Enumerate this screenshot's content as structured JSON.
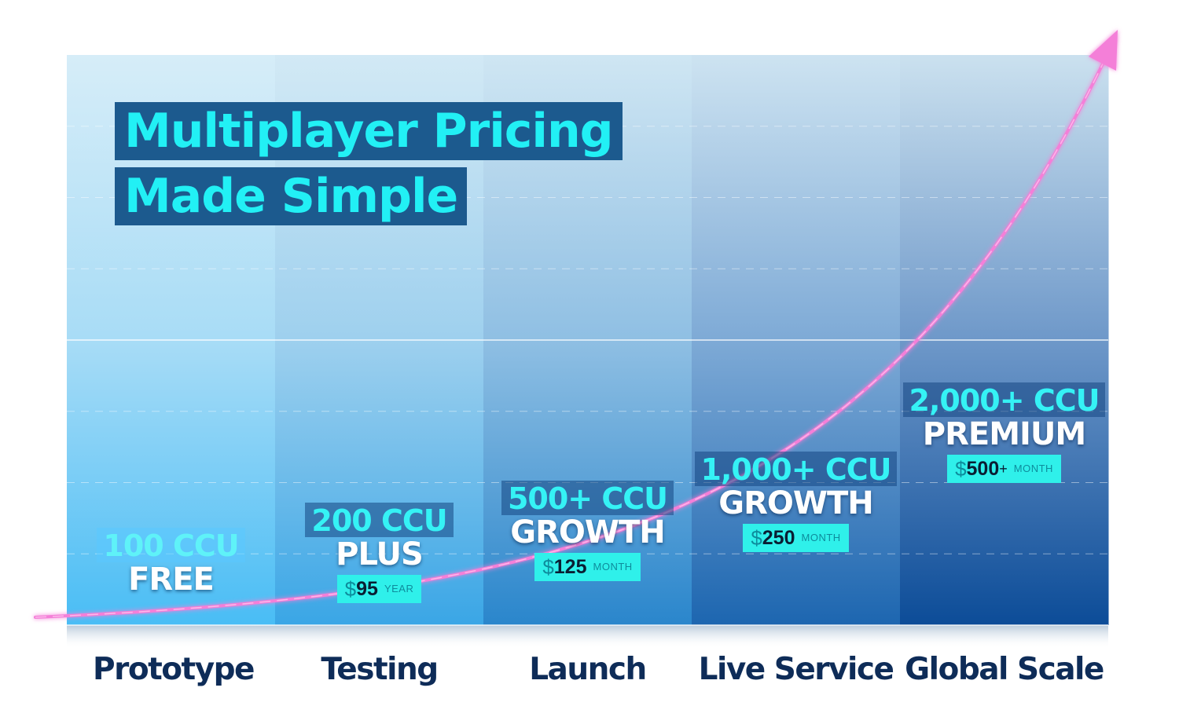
{
  "title": {
    "line1": "Multiplayer Pricing",
    "line2": "Made Simple"
  },
  "colors": {
    "curve": "#f47fd8",
    "title_bg": "#1c5a8e",
    "title_text": "#22f0f5",
    "price_badge": "#2ff0ea",
    "category_text": "#0e2c58"
  },
  "chart_data": {
    "type": "bar",
    "categories": [
      "Prototype",
      "Testing",
      "Launch",
      "Live Service",
      "Global Scale"
    ],
    "tiers": [
      {
        "ccu": "100 CCU",
        "plan": "FREE",
        "price": null
      },
      {
        "ccu": "200 CCU",
        "plan": "PLUS",
        "price": {
          "symbol": "$",
          "amount": "95",
          "plus": "",
          "period": "YEAR"
        }
      },
      {
        "ccu": "500+ CCU",
        "plan": "GROWTH",
        "price": {
          "symbol": "$",
          "amount": "125",
          "plus": "",
          "period": "MONTH"
        }
      },
      {
        "ccu": "1,000+ CCU",
        "plan": "GROWTH",
        "price": {
          "symbol": "$",
          "amount": "250",
          "plus": "",
          "period": "MONTH"
        }
      },
      {
        "ccu": "2,000+ CCU",
        "plan": "PREMIUM",
        "price": {
          "symbol": "$",
          "amount": "500",
          "plus": "+",
          "period": "MONTH"
        }
      }
    ],
    "trend": "exponential growth curve with arrowhead at top-right",
    "grid": true
  }
}
